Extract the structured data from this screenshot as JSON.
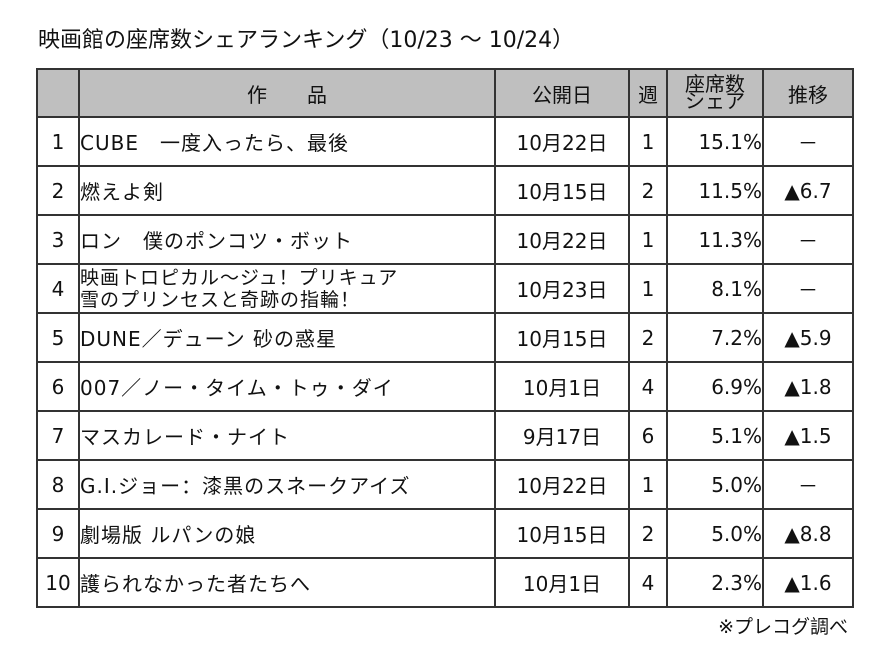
{
  "title": "映画館の座席数シェアランキング（10/23 ～ 10/24）",
  "headers": {
    "title": "作　　品",
    "release": "公開日",
    "weeks": "週",
    "share_line1": "座席数",
    "share_line2": "シェア",
    "trend": "推移"
  },
  "rows": [
    {
      "rank": "1",
      "title": "CUBE　一度入ったら、最後",
      "title2": "",
      "release": "10月22日",
      "weeks": "1",
      "share": "15.1%",
      "trend": "－"
    },
    {
      "rank": "2",
      "title": "燃えよ剣",
      "title2": "",
      "release": "10月15日",
      "weeks": "2",
      "share": "11.5%",
      "trend": "▲6.7"
    },
    {
      "rank": "3",
      "title": "ロン　僕のポンコツ・ボット",
      "title2": "",
      "release": "10月22日",
      "weeks": "1",
      "share": "11.3%",
      "trend": "－"
    },
    {
      "rank": "4",
      "title": "映画トロピカル～ジュ！プリキュア",
      "title2": "雪のプリンセスと奇跡の指輪！",
      "release": "10月23日",
      "weeks": "1",
      "share": "8.1%",
      "trend": "－"
    },
    {
      "rank": "5",
      "title": "DUNE／デューン 砂の惑星",
      "title2": "",
      "release": "10月15日",
      "weeks": "2",
      "share": "7.2%",
      "trend": "▲5.9"
    },
    {
      "rank": "6",
      "title": "007／ノー・タイム・トゥ・ダイ",
      "title2": "",
      "release": "10月1日",
      "weeks": "4",
      "share": "6.9%",
      "trend": "▲1.8"
    },
    {
      "rank": "7",
      "title": "マスカレード・ナイト",
      "title2": "",
      "release": "9月17日",
      "weeks": "6",
      "share": "5.1%",
      "trend": "▲1.5"
    },
    {
      "rank": "8",
      "title": "G.I.ジョー：漆黒のスネークアイズ",
      "title2": "",
      "release": "10月22日",
      "weeks": "1",
      "share": "5.0%",
      "trend": "－"
    },
    {
      "rank": "9",
      "title": "劇場版 ルパンの娘",
      "title2": "",
      "release": "10月15日",
      "weeks": "2",
      "share": "5.0%",
      "trend": "▲8.8"
    },
    {
      "rank": "10",
      "title": "護られなかった者たちへ",
      "title2": "",
      "release": "10月1日",
      "weeks": "4",
      "share": "2.3%",
      "trend": "▲1.6"
    }
  ],
  "note": "※プレコグ調べ"
}
